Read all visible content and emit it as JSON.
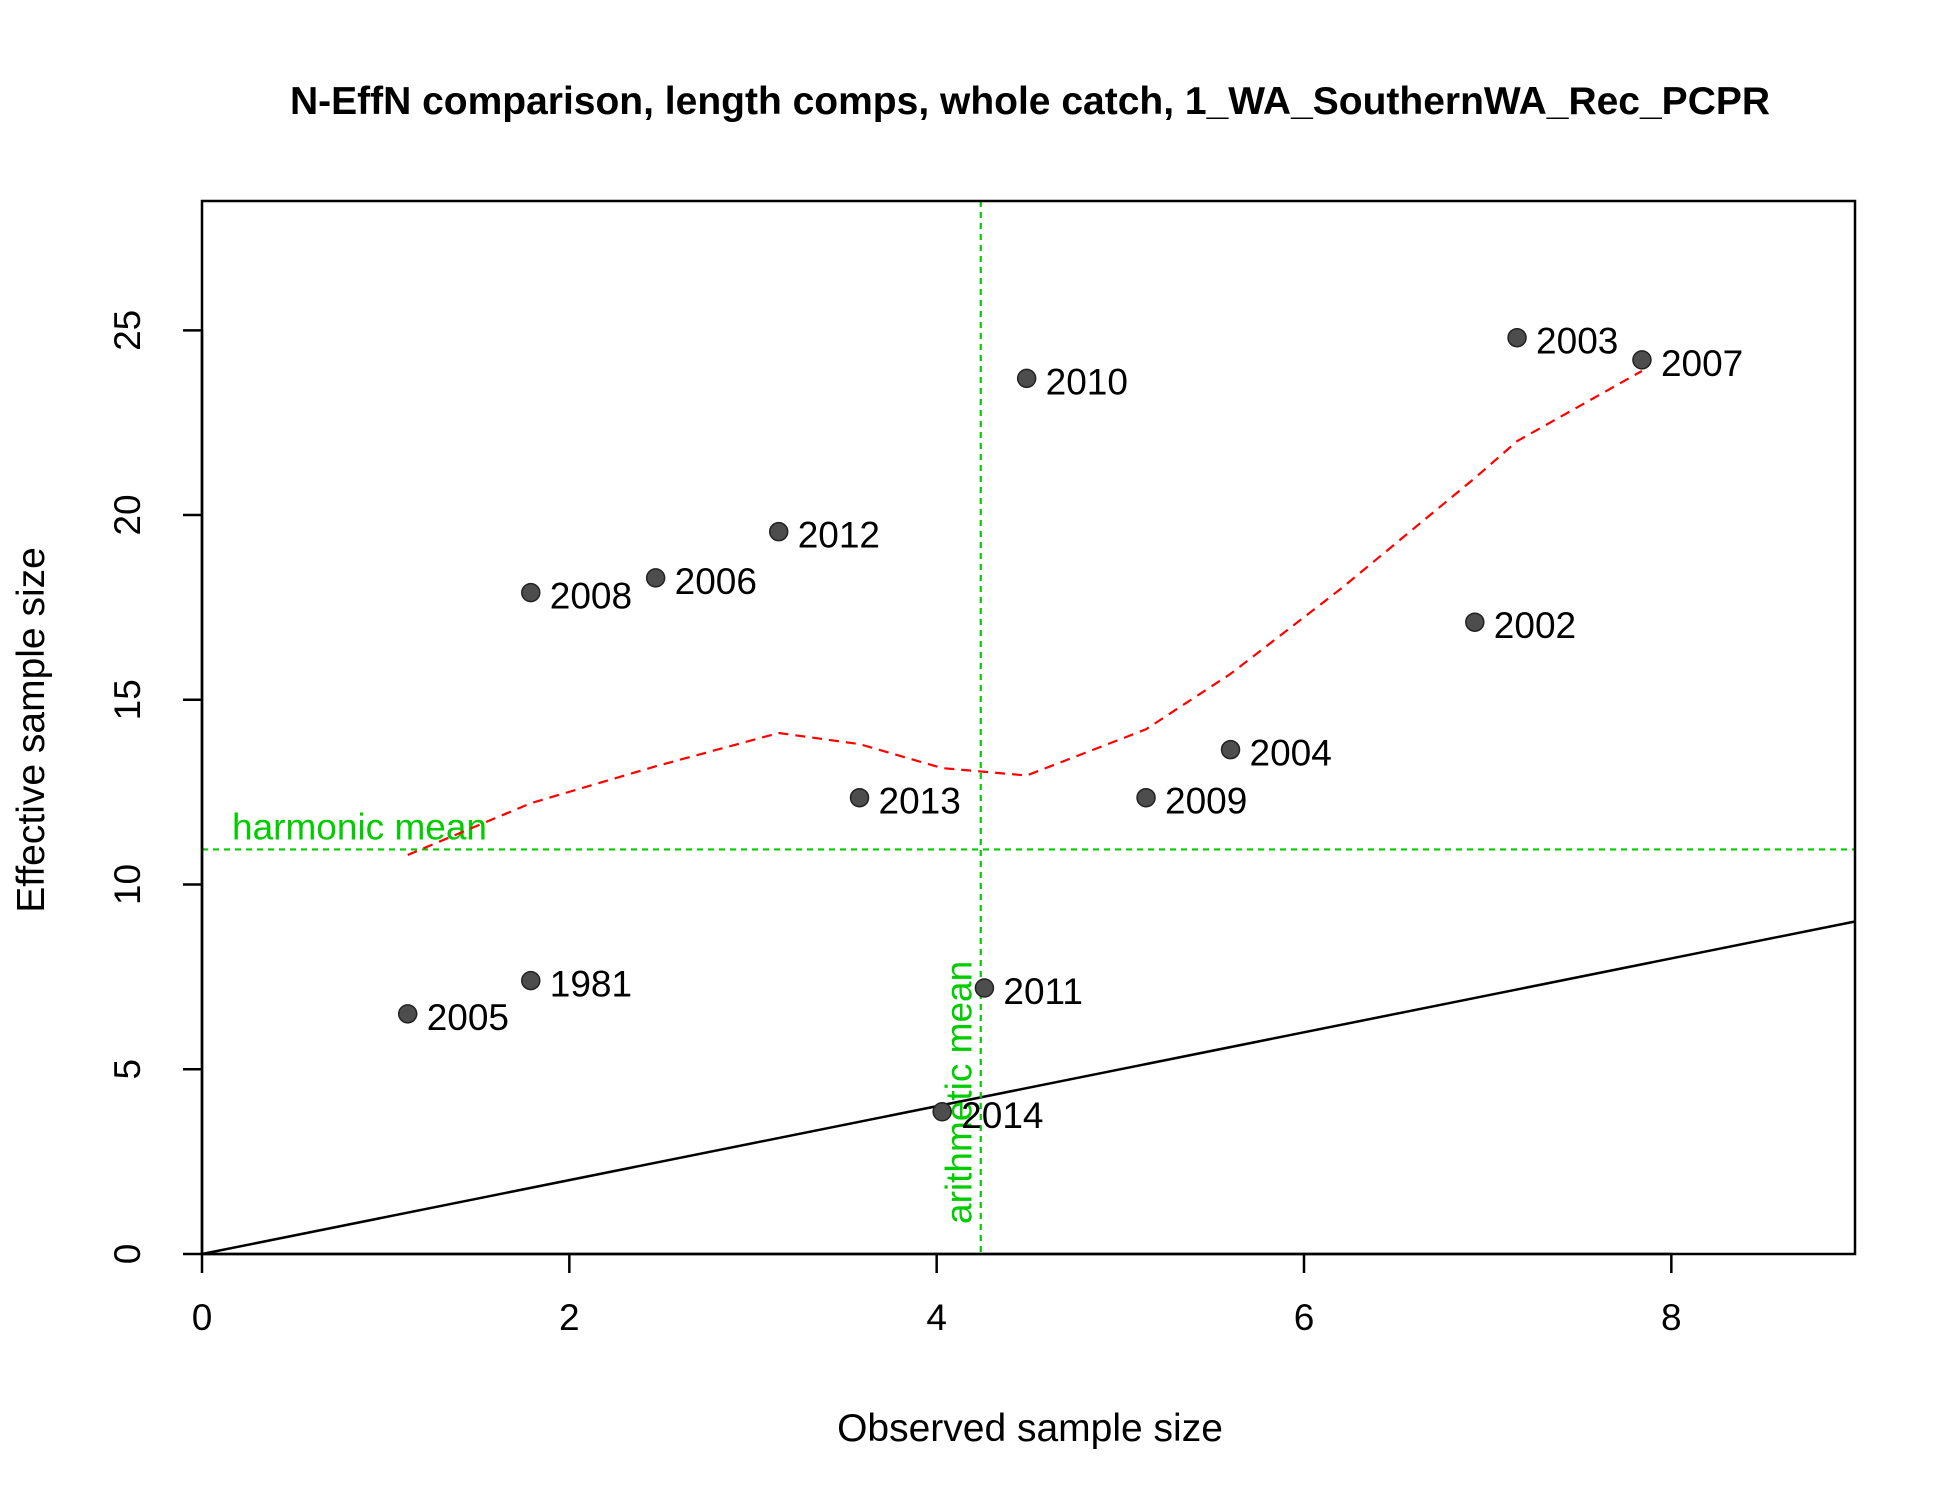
{
  "chart_data": {
    "type": "scatter",
    "title": "N-EffN comparison, length comps, whole catch, 1_WA_SouthernWA_Rec_PCPR",
    "xlabel": "Observed sample size",
    "ylabel": "Effective sample size",
    "xlim": [
      0,
      9
    ],
    "ylim": [
      0,
      28.5
    ],
    "xticks": [
      0,
      2,
      4,
      6,
      8
    ],
    "yticks": [
      0,
      5,
      10,
      15,
      20,
      25
    ],
    "grid": false,
    "points": [
      {
        "label": "1981",
        "x": 1.79,
        "y": 7.4
      },
      {
        "label": "2002",
        "x": 6.93,
        "y": 17.1
      },
      {
        "label": "2003",
        "x": 7.16,
        "y": 24.8
      },
      {
        "label": "2004",
        "x": 5.6,
        "y": 13.65
      },
      {
        "label": "2005",
        "x": 1.12,
        "y": 6.5
      },
      {
        "label": "2006",
        "x": 2.47,
        "y": 18.3
      },
      {
        "label": "2007",
        "x": 7.84,
        "y": 24.2
      },
      {
        "label": "2008",
        "x": 1.79,
        "y": 17.9
      },
      {
        "label": "2009",
        "x": 5.14,
        "y": 12.35
      },
      {
        "label": "2010",
        "x": 4.49,
        "y": 23.7
      },
      {
        "label": "2011",
        "x": 4.26,
        "y": 7.2
      },
      {
        "label": "2012",
        "x": 3.14,
        "y": 19.55
      },
      {
        "label": "2013",
        "x": 3.58,
        "y": 12.35
      },
      {
        "label": "2014",
        "x": 4.03,
        "y": 3.85
      }
    ],
    "point_color": "#4d4d4d",
    "smoother": {
      "color": "#ff0000",
      "x": [
        1.12,
        1.79,
        2.47,
        3.14,
        3.58,
        4.03,
        4.49,
        5.14,
        5.6,
        6.2,
        6.93,
        7.16,
        7.84
      ],
      "y": [
        10.8,
        12.2,
        13.2,
        14.1,
        13.8,
        13.15,
        12.95,
        14.2,
        15.7,
        18.0,
        21.0,
        22.0,
        23.9
      ]
    },
    "identity_line": {
      "color": "#000000",
      "x": [
        0,
        9
      ],
      "y": [
        0,
        9
      ]
    },
    "harmonic_mean": {
      "value": 10.95,
      "label": "harmonic mean",
      "color": "#00cc00"
    },
    "arithmetic_mean": {
      "value": 4.24,
      "label": "arithmetic mean",
      "color": "#00cc00"
    }
  }
}
